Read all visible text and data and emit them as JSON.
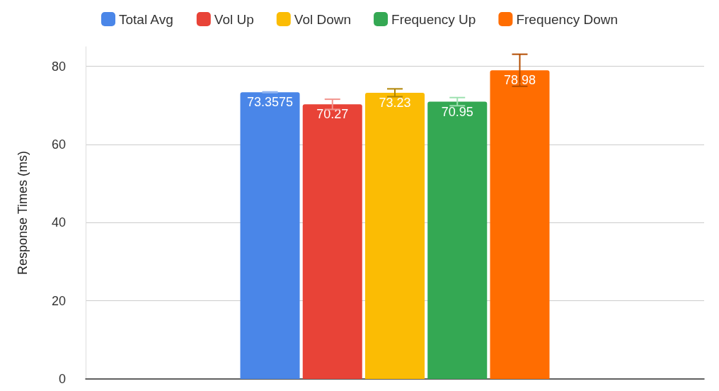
{
  "chart_data": {
    "type": "bar",
    "ylabel": "Response Times (ms)",
    "categories": [
      null
    ],
    "series": [
      {
        "name": "Total Avg",
        "color": "#4a86e8",
        "values": [
          73.3575
        ],
        "errors": [
          0.1
        ]
      },
      {
        "name": "Vol Up",
        "color": "#e84337",
        "values": [
          70.27
        ],
        "errors": [
          1.3
        ]
      },
      {
        "name": "Vol Down",
        "color": "#fbbc04",
        "values": [
          73.23
        ],
        "errors": [
          1.0
        ]
      },
      {
        "name": "Frequency Up",
        "color": "#34a853",
        "values": [
          70.95
        ],
        "errors": [
          1.05
        ]
      },
      {
        "name": "Frequency Down",
        "color": "#ff6d01",
        "values": [
          78.98
        ],
        "errors": [
          4.1
        ]
      }
    ],
    "ylim": [
      0,
      85
    ],
    "yticks": [
      0,
      20,
      40,
      60,
      80
    ],
    "grid": "y",
    "legend": "top",
    "data_labels": true
  }
}
